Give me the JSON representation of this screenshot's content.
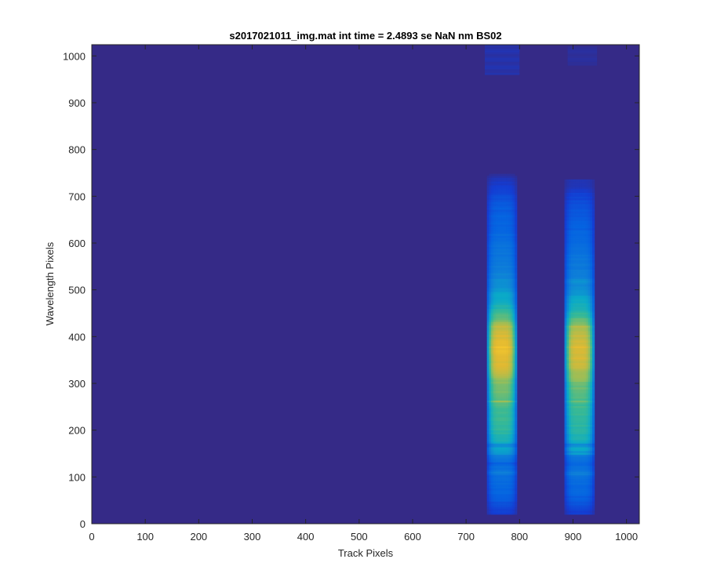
{
  "chart_data": {
    "type": "heatmap",
    "title": "s2017021011_img.mat int time = 2.4893 se  NaN nm BS02",
    "xlabel": "Track Pixels",
    "ylabel": "Wavelength Pixels",
    "xlim": [
      0,
      1024
    ],
    "ylim": [
      0,
      1024
    ],
    "xticks": [
      0,
      100,
      200,
      300,
      400,
      500,
      600,
      700,
      800,
      900,
      1000
    ],
    "yticks": [
      0,
      100,
      200,
      300,
      400,
      500,
      600,
      700,
      800,
      900,
      1000
    ],
    "colormap": "parula",
    "background_color": "#352a87",
    "grid": false,
    "bands": [
      {
        "x_center": 767,
        "x_halfwidth": 28,
        "y_range": [
          20,
          745
        ],
        "profile": [
          {
            "y": 20,
            "level": 0.12
          },
          {
            "y": 60,
            "level": 0.25
          },
          {
            "y": 100,
            "level": 0.3
          },
          {
            "y": 140,
            "level": 0.32
          },
          {
            "y": 160,
            "level": 0.5
          },
          {
            "y": 200,
            "level": 0.6
          },
          {
            "y": 260,
            "level": 0.66
          },
          {
            "y": 300,
            "level": 0.72
          },
          {
            "y": 340,
            "level": 0.86
          },
          {
            "y": 380,
            "level": 0.9
          },
          {
            "y": 420,
            "level": 0.8
          },
          {
            "y": 460,
            "level": 0.58
          },
          {
            "y": 520,
            "level": 0.4
          },
          {
            "y": 600,
            "level": 0.3
          },
          {
            "y": 680,
            "level": 0.22
          },
          {
            "y": 745,
            "level": 0.05
          }
        ]
      },
      {
        "x_center": 912,
        "x_halfwidth": 28,
        "y_range": [
          20,
          735
        ],
        "profile": [
          {
            "y": 20,
            "level": 0.12
          },
          {
            "y": 60,
            "level": 0.25
          },
          {
            "y": 100,
            "level": 0.3
          },
          {
            "y": 140,
            "level": 0.32
          },
          {
            "y": 160,
            "level": 0.5
          },
          {
            "y": 200,
            "level": 0.58
          },
          {
            "y": 260,
            "level": 0.64
          },
          {
            "y": 300,
            "level": 0.7
          },
          {
            "y": 340,
            "level": 0.83
          },
          {
            "y": 380,
            "level": 0.86
          },
          {
            "y": 420,
            "level": 0.77
          },
          {
            "y": 460,
            "level": 0.55
          },
          {
            "y": 520,
            "level": 0.38
          },
          {
            "y": 600,
            "level": 0.28
          },
          {
            "y": 680,
            "level": 0.2
          },
          {
            "y": 735,
            "level": 0.05
          }
        ]
      }
    ],
    "faint_patches": [
      {
        "x_range": [
          735,
          800
        ],
        "y_range": [
          960,
          1024
        ],
        "level": 0.07
      },
      {
        "x_range": [
          890,
          945
        ],
        "y_range": [
          980,
          1020
        ],
        "level": 0.04
      }
    ],
    "line_features": [
      {
        "y": 262,
        "delta": 0.07
      },
      {
        "y": 168,
        "delta": -0.1
      },
      {
        "y": 150,
        "delta": 0.05
      },
      {
        "y": 128,
        "delta": -0.06
      },
      {
        "y": 108,
        "delta": 0.05
      },
      {
        "y": 422,
        "delta": 0.05
      },
      {
        "y": 520,
        "delta": 0.03
      }
    ]
  }
}
